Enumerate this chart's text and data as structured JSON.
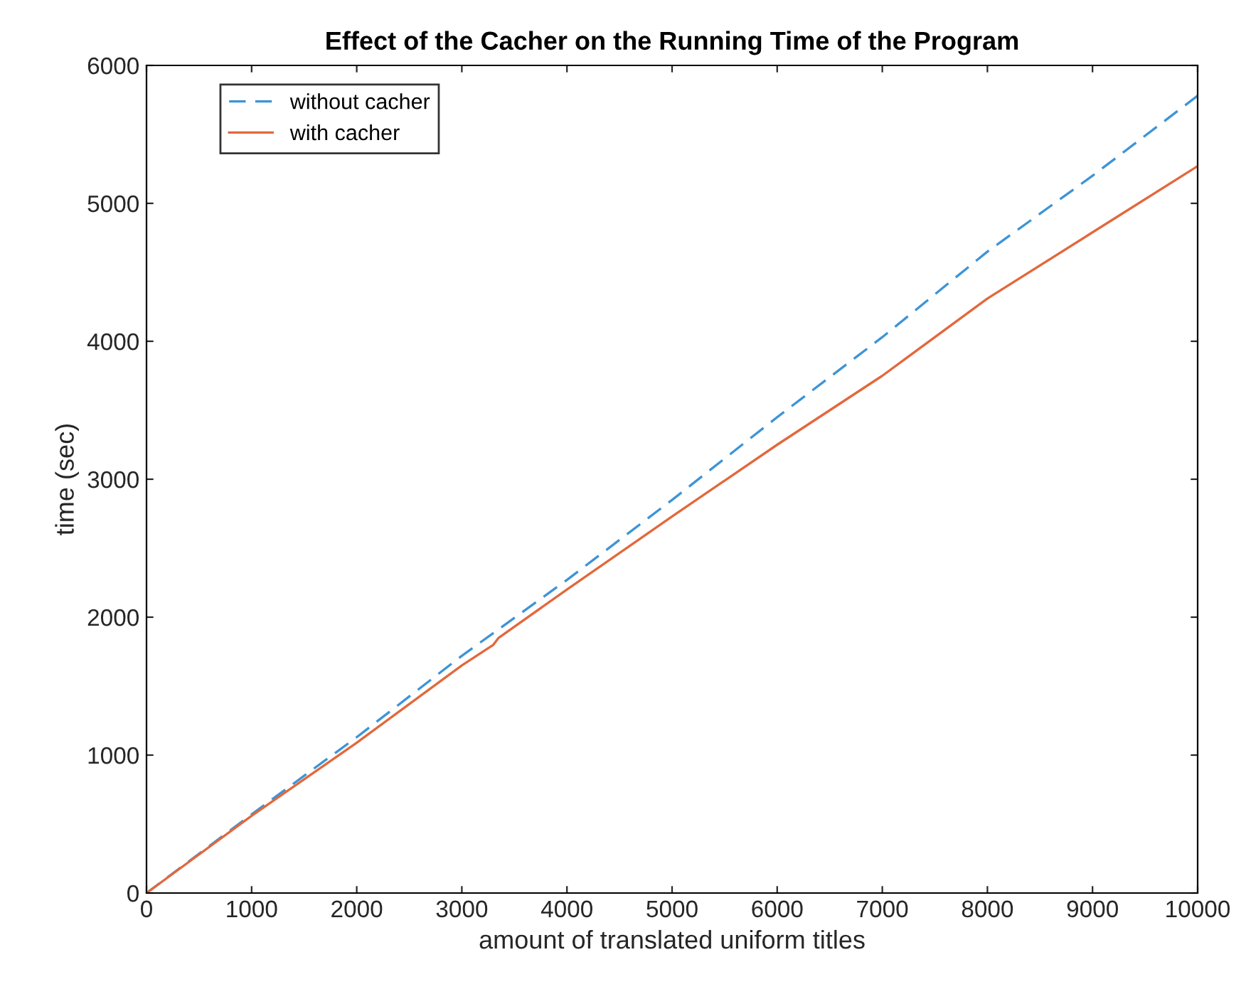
{
  "chart_data": {
    "type": "line",
    "title": "Effect of the Cacher on the Running Time of the Program",
    "xlabel": "amount of translated uniform titles",
    "ylabel": "time (sec)",
    "xlim": [
      0,
      10000
    ],
    "ylim": [
      0,
      6000
    ],
    "xticks": [
      0,
      1000,
      2000,
      3000,
      4000,
      5000,
      6000,
      7000,
      8000,
      9000,
      10000
    ],
    "yticks": [
      0,
      1000,
      2000,
      3000,
      4000,
      5000,
      6000
    ],
    "grid": false,
    "legend": "top left",
    "marker": "none",
    "series": [
      {
        "name": "without cacher",
        "color": "#3d94d6",
        "line_style": "dashed",
        "x": [
          0,
          1000,
          2000,
          3000,
          4000,
          5000,
          6000,
          7000,
          8000,
          9000,
          10000
        ],
        "values": [
          0,
          570,
          1130,
          1720,
          2270,
          2850,
          3450,
          4030,
          4650,
          5200,
          5780
        ]
      },
      {
        "name": "with cacher",
        "color": "#e2683c",
        "line_style": "solid",
        "x": [
          0,
          1000,
          2000,
          3000,
          3300,
          3350,
          4000,
          5000,
          6000,
          7000,
          8000,
          9000,
          10000
        ],
        "values": [
          0,
          560,
          1090,
          1650,
          1800,
          1850,
          2200,
          2730,
          3250,
          3750,
          4310,
          4790,
          5270
        ]
      }
    ]
  }
}
